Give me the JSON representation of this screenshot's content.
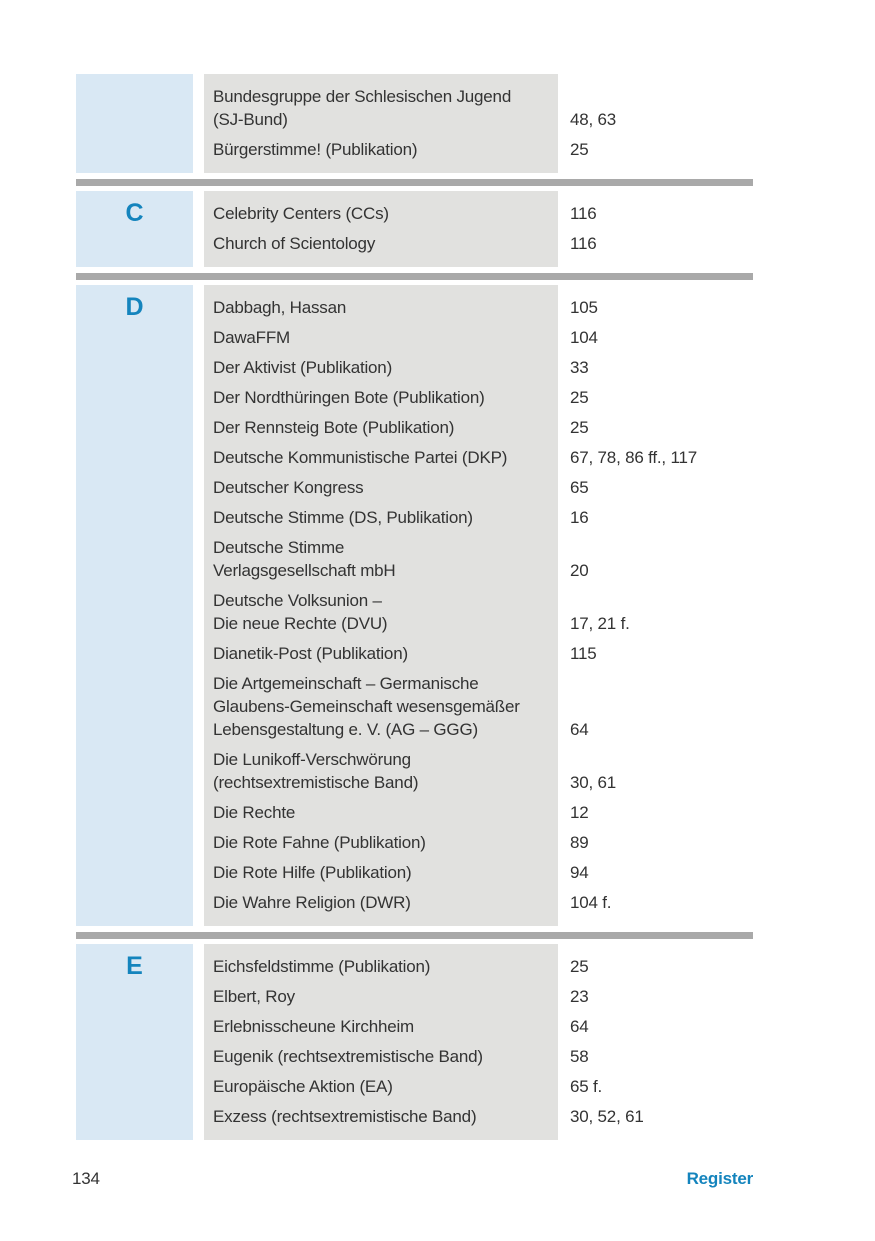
{
  "colors": {
    "accent_blue": "#1484bd",
    "letter_bg": "#d9e8f4",
    "entry_bg": "#e1e1df",
    "separator": "#a9a9a9"
  },
  "footer": {
    "page_number": "134",
    "register_label": "Register"
  },
  "sections": [
    {
      "letter": "",
      "entries": [
        {
          "name": "Bundesgruppe der Schlesischen Jugend\n(SJ-Bund)",
          "pages": "48, 63"
        },
        {
          "name": "Bürgerstimme! (Publikation)",
          "pages": "25"
        }
      ]
    },
    {
      "letter": "C",
      "entries": [
        {
          "name": "Celebrity Centers (CCs)",
          "pages": "116"
        },
        {
          "name": "Church of Scientology",
          "pages": "116"
        }
      ]
    },
    {
      "letter": "D",
      "entries": [
        {
          "name": "Dabbagh, Hassan",
          "pages": "105"
        },
        {
          "name": "DawaFFM",
          "pages": "104"
        },
        {
          "name": "Der Aktivist (Publikation)",
          "pages": "33"
        },
        {
          "name": "Der Nordthüringen Bote (Publikation)",
          "pages": "25"
        },
        {
          "name": "Der Rennsteig Bote (Publikation)",
          "pages": "25"
        },
        {
          "name": "Deutsche Kommunistische Partei (DKP)",
          "pages": "67, 78, 86 ff., 117"
        },
        {
          "name": "Deutscher Kongress",
          "pages": "65"
        },
        {
          "name": "Deutsche Stimme (DS, Publikation)",
          "pages": "16"
        },
        {
          "name": "Deutsche Stimme\nVerlagsgesellschaft mbH",
          "pages": "20"
        },
        {
          "name": "Deutsche Volksunion –\nDie neue Rechte (DVU)",
          "pages": "17, 21 f."
        },
        {
          "name": "Dianetik-Post (Publikation)",
          "pages": "115"
        },
        {
          "name": "Die Artgemeinschaft – Germanische\nGlaubens-Gemeinschaft wesensgemäßer\nLebensgestaltung e. V. (AG – GGG)",
          "pages": "64"
        },
        {
          "name": "Die Lunikoff-Verschwörung\n(rechtsextremistische Band)",
          "pages": "30, 61"
        },
        {
          "name": "Die Rechte",
          "pages": "12"
        },
        {
          "name": "Die Rote Fahne (Publikation)",
          "pages": "89"
        },
        {
          "name": "Die Rote Hilfe (Publikation)",
          "pages": "94"
        },
        {
          "name": "Die Wahre Religion (DWR)",
          "pages": "104 f."
        }
      ]
    },
    {
      "letter": "E",
      "entries": [
        {
          "name": "Eichsfeldstimme (Publikation)",
          "pages": "25"
        },
        {
          "name": "Elbert, Roy",
          "pages": "23"
        },
        {
          "name": "Erlebnisscheune Kirchheim",
          "pages": "64"
        },
        {
          "name": "Eugenik (rechtsextremistische Band)",
          "pages": "58"
        },
        {
          "name": "Europäische Aktion (EA)",
          "pages": "65 f."
        },
        {
          "name": "Exzess (rechtsextremistische Band)",
          "pages": "30, 52, 61"
        }
      ]
    }
  ]
}
